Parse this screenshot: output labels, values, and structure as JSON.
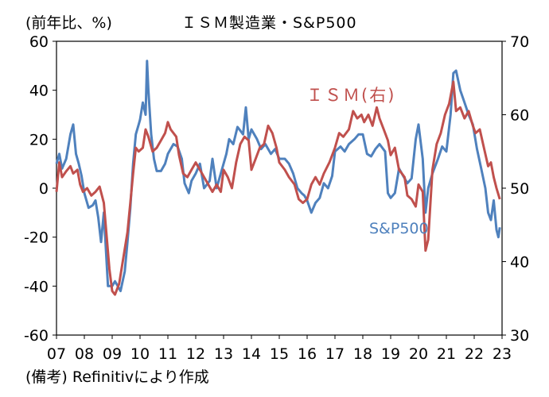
{
  "header": {
    "unit_label": "(前年比、%)",
    "title": "ＩＳＭ製造業・S&P500"
  },
  "footer": {
    "source": "(備考) Refinitivにより作成"
  },
  "chart_data": {
    "type": "line",
    "title": "ＩＳＭ製造業・S&P500",
    "unit_label": "(前年比、%)",
    "xlabel": "",
    "x_ticks": [
      "07",
      "08",
      "09",
      "10",
      "11",
      "12",
      "13",
      "14",
      "15",
      "16",
      "17",
      "18",
      "19",
      "20",
      "21",
      "22",
      "23"
    ],
    "x_range": [
      2007.0,
      2023.0
    ],
    "left_axis": {
      "label": "(前年比、%)",
      "ticks": [
        60,
        40,
        20,
        0,
        -20,
        -40,
        -60
      ],
      "ylim": [
        -60,
        60
      ]
    },
    "right_axis": {
      "ticks": [
        70,
        60,
        50,
        40,
        30
      ],
      "ylim": [
        30,
        70
      ]
    },
    "grid": false,
    "series": [
      {
        "name": "S&P500",
        "axis": "left",
        "color": "#4f81bd",
        "label_text": "S&P500",
        "points": [
          [
            2007.0,
            10
          ],
          [
            2007.1,
            14
          ],
          [
            2007.2,
            8
          ],
          [
            2007.35,
            12
          ],
          [
            2007.5,
            22
          ],
          [
            2007.6,
            26
          ],
          [
            2007.7,
            14
          ],
          [
            2007.8,
            10
          ],
          [
            2007.9,
            5
          ],
          [
            2008.0,
            -2
          ],
          [
            2008.15,
            -8
          ],
          [
            2008.3,
            -7
          ],
          [
            2008.4,
            -5
          ],
          [
            2008.5,
            -12
          ],
          [
            2008.6,
            -22
          ],
          [
            2008.7,
            -10
          ],
          [
            2008.85,
            -40
          ],
          [
            2009.0,
            -40
          ],
          [
            2009.1,
            -38
          ],
          [
            2009.2,
            -40
          ],
          [
            2009.3,
            -42
          ],
          [
            2009.45,
            -34
          ],
          [
            2009.55,
            -22
          ],
          [
            2009.65,
            -8
          ],
          [
            2009.75,
            10
          ],
          [
            2009.85,
            22
          ],
          [
            2009.95,
            26
          ],
          [
            2010.0,
            28
          ],
          [
            2010.1,
            35
          ],
          [
            2010.2,
            30
          ],
          [
            2010.25,
            52
          ],
          [
            2010.3,
            40
          ],
          [
            2010.4,
            22
          ],
          [
            2010.5,
            12
          ],
          [
            2010.6,
            7
          ],
          [
            2010.75,
            7
          ],
          [
            2010.9,
            10
          ],
          [
            2011.0,
            14
          ],
          [
            2011.2,
            18
          ],
          [
            2011.35,
            17
          ],
          [
            2011.5,
            12
          ],
          [
            2011.6,
            2
          ],
          [
            2011.75,
            -2
          ],
          [
            2011.85,
            3
          ],
          [
            2012.0,
            6
          ],
          [
            2012.15,
            10
          ],
          [
            2012.3,
            0
          ],
          [
            2012.5,
            3
          ],
          [
            2012.6,
            12
          ],
          [
            2012.75,
            0
          ],
          [
            2012.9,
            6
          ],
          [
            2013.0,
            10
          ],
          [
            2013.1,
            14
          ],
          [
            2013.2,
            20
          ],
          [
            2013.35,
            18
          ],
          [
            2013.5,
            25
          ],
          [
            2013.7,
            22
          ],
          [
            2013.8,
            33
          ],
          [
            2013.9,
            20
          ],
          [
            2014.0,
            24
          ],
          [
            2014.2,
            20
          ],
          [
            2014.35,
            16
          ],
          [
            2014.5,
            18
          ],
          [
            2014.7,
            14
          ],
          [
            2014.85,
            16
          ],
          [
            2015.0,
            12
          ],
          [
            2015.2,
            12
          ],
          [
            2015.35,
            10
          ],
          [
            2015.5,
            6
          ],
          [
            2015.65,
            0
          ],
          [
            2015.8,
            -2
          ],
          [
            2015.9,
            -3
          ],
          [
            2016.0,
            -5
          ],
          [
            2016.15,
            -10
          ],
          [
            2016.3,
            -6
          ],
          [
            2016.45,
            -4
          ],
          [
            2016.6,
            2
          ],
          [
            2016.75,
            0
          ],
          [
            2016.9,
            5
          ],
          [
            2017.0,
            15
          ],
          [
            2017.2,
            17
          ],
          [
            2017.35,
            15
          ],
          [
            2017.5,
            18
          ],
          [
            2017.7,
            20
          ],
          [
            2017.85,
            22
          ],
          [
            2018.0,
            22
          ],
          [
            2018.15,
            14
          ],
          [
            2018.3,
            13
          ],
          [
            2018.45,
            16
          ],
          [
            2018.6,
            18
          ],
          [
            2018.8,
            15
          ],
          [
            2018.9,
            -2
          ],
          [
            2019.0,
            -4
          ],
          [
            2019.15,
            -2
          ],
          [
            2019.3,
            8
          ],
          [
            2019.45,
            5
          ],
          [
            2019.6,
            2
          ],
          [
            2019.75,
            4
          ],
          [
            2019.9,
            20
          ],
          [
            2020.0,
            26
          ],
          [
            2020.15,
            12
          ],
          [
            2020.25,
            -10
          ],
          [
            2020.35,
            0
          ],
          [
            2020.5,
            6
          ],
          [
            2020.7,
            12
          ],
          [
            2020.85,
            17
          ],
          [
            2021.0,
            15
          ],
          [
            2021.15,
            30
          ],
          [
            2021.25,
            47
          ],
          [
            2021.35,
            48
          ],
          [
            2021.5,
            40
          ],
          [
            2021.65,
            35
          ],
          [
            2021.8,
            30
          ],
          [
            2021.95,
            26
          ],
          [
            2022.1,
            16
          ],
          [
            2022.25,
            8
          ],
          [
            2022.4,
            0
          ],
          [
            2022.5,
            -10
          ],
          [
            2022.6,
            -13
          ],
          [
            2022.7,
            -5
          ],
          [
            2022.8,
            -17
          ],
          [
            2022.87,
            -20
          ],
          [
            2022.92,
            -16
          ]
        ]
      },
      {
        "name": "ＩＳＭ(右)",
        "axis": "right",
        "color": "#c0504d",
        "label_text": "ＩＳＭ(右)",
        "points": [
          [
            2007.0,
            49.5
          ],
          [
            2007.1,
            53.5
          ],
          [
            2007.2,
            51.5
          ],
          [
            2007.35,
            52.3
          ],
          [
            2007.5,
            53.0
          ],
          [
            2007.6,
            52.0
          ],
          [
            2007.75,
            52.5
          ],
          [
            2007.85,
            50.5
          ],
          [
            2007.95,
            49.5
          ],
          [
            2008.1,
            50.0
          ],
          [
            2008.25,
            49.0
          ],
          [
            2008.4,
            49.5
          ],
          [
            2008.55,
            50.2
          ],
          [
            2008.7,
            48.0
          ],
          [
            2008.8,
            43.5
          ],
          [
            2008.9,
            39.0
          ],
          [
            2009.0,
            36.0
          ],
          [
            2009.1,
            35.5
          ],
          [
            2009.25,
            37.0
          ],
          [
            2009.4,
            40.5
          ],
          [
            2009.55,
            44.0
          ],
          [
            2009.65,
            48.0
          ],
          [
            2009.75,
            52.0
          ],
          [
            2009.85,
            55.5
          ],
          [
            2009.95,
            55.0
          ],
          [
            2010.1,
            55.5
          ],
          [
            2010.2,
            58.0
          ],
          [
            2010.3,
            57.0
          ],
          [
            2010.45,
            55.0
          ],
          [
            2010.6,
            55.5
          ],
          [
            2010.75,
            56.5
          ],
          [
            2010.9,
            57.5
          ],
          [
            2011.0,
            59.0
          ],
          [
            2011.1,
            58.0
          ],
          [
            2011.3,
            57.0
          ],
          [
            2011.4,
            54.5
          ],
          [
            2011.55,
            52.0
          ],
          [
            2011.7,
            51.5
          ],
          [
            2011.85,
            52.5
          ],
          [
            2012.0,
            53.5
          ],
          [
            2012.15,
            52.5
          ],
          [
            2012.3,
            51.5
          ],
          [
            2012.45,
            50.5
          ],
          [
            2012.6,
            49.5
          ],
          [
            2012.75,
            50.5
          ],
          [
            2012.9,
            49.5
          ],
          [
            2013.0,
            52.5
          ],
          [
            2013.15,
            51.5
          ],
          [
            2013.3,
            50.0
          ],
          [
            2013.45,
            53.5
          ],
          [
            2013.6,
            56.0
          ],
          [
            2013.75,
            57.0
          ],
          [
            2013.9,
            56.5
          ],
          [
            2014.0,
            52.5
          ],
          [
            2014.15,
            54.0
          ],
          [
            2014.3,
            55.5
          ],
          [
            2014.45,
            56.0
          ],
          [
            2014.6,
            58.5
          ],
          [
            2014.75,
            57.5
          ],
          [
            2014.9,
            55.5
          ],
          [
            2015.0,
            53.5
          ],
          [
            2015.2,
            52.5
          ],
          [
            2015.35,
            51.5
          ],
          [
            2015.55,
            50.5
          ],
          [
            2015.7,
            48.5
          ],
          [
            2015.85,
            48.0
          ],
          [
            2016.0,
            48.5
          ],
          [
            2016.15,
            50.5
          ],
          [
            2016.3,
            51.5
          ],
          [
            2016.45,
            50.5
          ],
          [
            2016.6,
            52.0
          ],
          [
            2016.8,
            53.5
          ],
          [
            2017.0,
            55.5
          ],
          [
            2017.15,
            57.5
          ],
          [
            2017.3,
            57.0
          ],
          [
            2017.5,
            58.0
          ],
          [
            2017.65,
            60.5
          ],
          [
            2017.8,
            59.5
          ],
          [
            2017.95,
            60.0
          ],
          [
            2018.05,
            59.0
          ],
          [
            2018.2,
            60.0
          ],
          [
            2018.35,
            58.5
          ],
          [
            2018.5,
            61.0
          ],
          [
            2018.6,
            59.5
          ],
          [
            2018.75,
            58.0
          ],
          [
            2018.9,
            56.5
          ],
          [
            2019.0,
            54.5
          ],
          [
            2019.15,
            55.5
          ],
          [
            2019.3,
            52.5
          ],
          [
            2019.5,
            51.5
          ],
          [
            2019.6,
            49.0
          ],
          [
            2019.75,
            48.5
          ],
          [
            2019.9,
            47.5
          ],
          [
            2020.0,
            50.5
          ],
          [
            2020.15,
            49.5
          ],
          [
            2020.25,
            41.5
          ],
          [
            2020.35,
            43.0
          ],
          [
            2020.5,
            52.5
          ],
          [
            2020.65,
            56.0
          ],
          [
            2020.8,
            57.5
          ],
          [
            2020.95,
            60.0
          ],
          [
            2021.1,
            61.5
          ],
          [
            2021.25,
            64.5
          ],
          [
            2021.35,
            60.5
          ],
          [
            2021.5,
            61.0
          ],
          [
            2021.65,
            59.5
          ],
          [
            2021.8,
            60.5
          ],
          [
            2021.95,
            58.5
          ],
          [
            2022.05,
            57.5
          ],
          [
            2022.2,
            58.0
          ],
          [
            2022.35,
            55.5
          ],
          [
            2022.5,
            53.0
          ],
          [
            2022.6,
            53.5
          ],
          [
            2022.7,
            51.5
          ],
          [
            2022.8,
            50.0
          ],
          [
            2022.92,
            48.5
          ]
        ]
      }
    ]
  }
}
